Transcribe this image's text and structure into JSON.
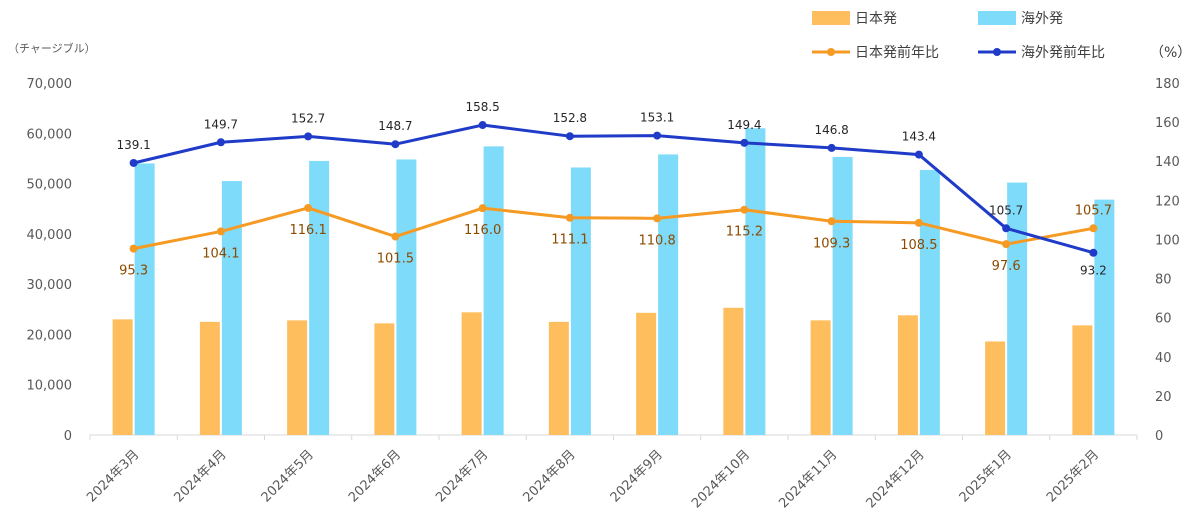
{
  "chart_data": {
    "type": "bar",
    "y_unit_left": "（チャージブル）",
    "y_unit_right": "（%）",
    "ylim_left": [
      0,
      70000
    ],
    "yticks_left": [
      "0",
      "10,000",
      "20,000",
      "30,000",
      "40,000",
      "50,000",
      "60,000",
      "70,000"
    ],
    "ylim_right": [
      0,
      180
    ],
    "yticks_right": [
      "0",
      "20",
      "40",
      "60",
      "80",
      "100",
      "120",
      "140",
      "160",
      "180"
    ],
    "categories": [
      "2024年3月",
      "2024年4月",
      "2024年5月",
      "2024年6月",
      "2024年7月",
      "2024年8月",
      "2024年9月",
      "2024年10月",
      "2024年11月",
      "2024年12月",
      "2025年1月",
      "2025年2月"
    ],
    "legend_position": "top-right",
    "bar_series": [
      {
        "name": "日本発",
        "color": "#FFBE5E",
        "values": [
          23000,
          22500,
          22800,
          22200,
          24400,
          22500,
          24300,
          25300,
          22800,
          23800,
          18600,
          21800
        ]
      },
      {
        "name": "海外発",
        "color": "#7FDBFA",
        "values": [
          54000,
          50500,
          54500,
          54800,
          57400,
          53200,
          55800,
          61000,
          55300,
          52700,
          50200,
          46800
        ]
      }
    ],
    "line_series": [
      {
        "name": "日本発前年比",
        "color": "#F59A23",
        "values": [
          95.3,
          104.1,
          116.1,
          101.5,
          116.0,
          111.1,
          110.8,
          115.2,
          109.3,
          108.5,
          97.6,
          105.7
        ],
        "labels": [
          "95.3",
          "104.1",
          "116.1",
          "101.5",
          "116.0",
          "111.1",
          "110.8",
          "115.2",
          "109.3",
          "108.5",
          "97.6",
          "105.7"
        ]
      },
      {
        "name": "海外発前年比",
        "color": "#1F3BC7",
        "values": [
          139.1,
          149.7,
          152.7,
          148.7,
          158.5,
          152.8,
          153.1,
          149.4,
          146.8,
          143.4,
          105.7,
          93.2
        ],
        "labels": [
          "139.1",
          "149.7",
          "152.7",
          "148.7",
          "158.5",
          "152.8",
          "153.1",
          "149.4",
          "146.8",
          "143.4",
          "105.7",
          "93.2"
        ]
      }
    ]
  }
}
